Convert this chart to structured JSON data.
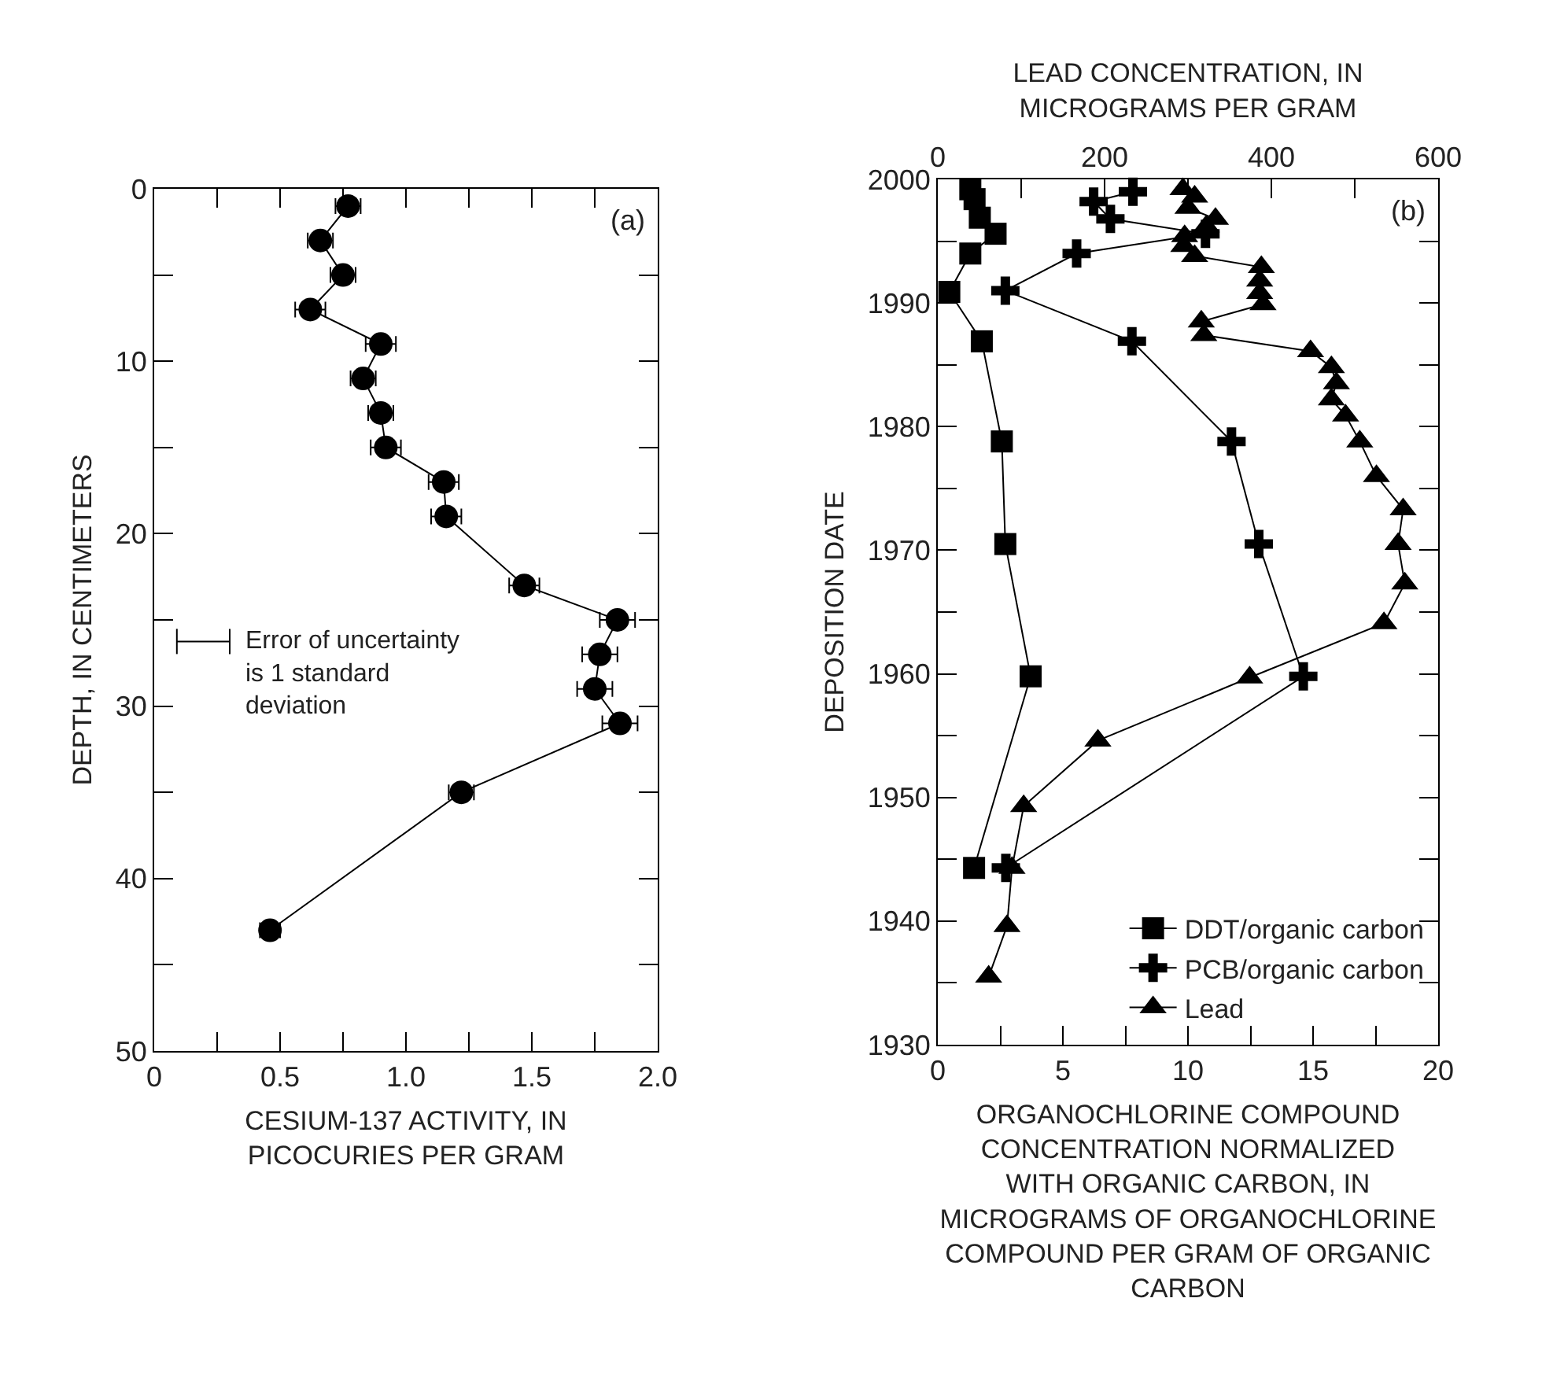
{
  "chart_data": [
    {
      "type": "line",
      "xlabel": "CESIUM-137 ACTIVITY, IN PICOCURIES PER GRAM",
      "ylabel": "DEPTH, IN CENTIMETERS",
      "xlim": [
        0,
        2.0
      ],
      "xticks": [
        0,
        {
          "value": 0.25,
          "label": null
        },
        0.5,
        {
          "value": 0.75,
          "label": null
        },
        {
          "value": 1,
          "label": "1.0"
        },
        {
          "value": 1.25,
          "label": null
        },
        1.5,
        {
          "value": 1.75,
          "label": null
        },
        {
          "value": 2,
          "label": "2.0"
        }
      ],
      "ylim": [
        50,
        0
      ],
      "yticks": [
        0,
        {
          "value": 5,
          "label": null
        },
        10,
        {
          "value": 15,
          "label": null
        },
        20,
        {
          "value": 25,
          "label": null
        },
        30,
        {
          "value": 35,
          "label": null
        },
        40,
        {
          "value": 45,
          "label": null
        },
        50
      ],
      "grid": false,
      "legend": false,
      "marker": "circle",
      "line_style": "solid",
      "annotations": [
        "(a)",
        "Error of uncertainty is 1 standard deviation"
      ],
      "series": [
        {
          "color": "#000000",
          "x": [
            0.77,
            0.66,
            0.75,
            0.62,
            0.9,
            0.83,
            0.9,
            0.92,
            1.15,
            1.16,
            1.47,
            1.84,
            1.77,
            1.75,
            1.85,
            1.22,
            0.46
          ],
          "values": [
            1,
            3,
            5,
            7,
            9,
            11,
            13,
            15,
            17,
            19,
            23,
            25,
            27,
            29,
            31,
            35,
            43
          ],
          "xerrors": [
            0.05,
            0.05,
            0.05,
            0.06,
            0.06,
            0.05,
            0.05,
            0.06,
            0.06,
            0.06,
            0.06,
            0.07,
            0.07,
            0.07,
            0.07,
            0.05,
            0.04
          ]
        }
      ]
    },
    {
      "type": "line",
      "xlabel": "ORGANOCHLORINE COMPOUND CONCENTRATION NORMALIZED WITH ORGANIC CARBON, IN MICROGRAMS OF ORGANOCHLORINE COMPOUND PER GRAM OF ORGANIC CARBON",
      "x2label": "LEAD CONCENTRATION, IN MICROGRAMS PER GRAM",
      "ylabel": "DEPOSITION DATE",
      "xlim": [
        0,
        20
      ],
      "xticks": [
        0,
        {
          "value": 2.5,
          "label": null
        },
        5,
        {
          "value": 7.5,
          "label": null
        },
        10,
        {
          "value": 12.5,
          "label": null
        },
        15,
        {
          "value": 17.5,
          "label": null
        },
        20
      ],
      "x2lim": [
        0,
        600
      ],
      "x2ticks": [
        0,
        {
          "value": 100,
          "label": null
        },
        200,
        {
          "value": 300,
          "label": null
        },
        400,
        {
          "value": 500,
          "label": null
        },
        600
      ],
      "ylim": [
        1930,
        2000
      ],
      "yticks": [
        1930,
        {
          "value": 1935,
          "label": null
        },
        1940,
        {
          "value": 1945,
          "label": null
        },
        1950,
        {
          "value": 1955,
          "label": null
        },
        1960,
        {
          "value": 1965,
          "label": null
        },
        1970,
        {
          "value": 1975,
          "label": null
        },
        1980,
        {
          "value": 1985,
          "label": null
        },
        1990,
        {
          "value": 1995,
          "label": null
        },
        2000
      ],
      "grid": false,
      "legend": "bottom right",
      "line_style": "solid",
      "annotations": [
        "(b)"
      ],
      "series": [
        {
          "name": "DDT/organic carbon",
          "color": "#000000",
          "marker": "square",
          "x": [
            1.3,
            1.47,
            1.68,
            2.31,
            1.3,
            0.46,
            1.76,
            2.56,
            2.7,
            3.71,
            1.45
          ],
          "values": [
            1999.2,
            1998.4,
            1996.9,
            1995.6,
            1994.0,
            1990.9,
            1986.9,
            1978.8,
            1970.5,
            1959.8,
            1944.3
          ]
        },
        {
          "name": "PCB/organic carbon",
          "color": "#000000",
          "marker": "cross",
          "x": [
            7.8,
            6.23,
            6.9,
            10.7,
            5.55,
            2.7,
            7.76,
            11.74,
            12.83,
            14.61,
            2.72
          ],
          "values": [
            1999.0,
            1998.2,
            1996.8,
            1995.6,
            1994.0,
            1991.0,
            1986.9,
            1978.8,
            1970.5,
            1959.8,
            1944.3
          ]
        },
        {
          "name": "Lead",
          "color": "#000000",
          "marker": "triangle",
          "axis": "x2",
          "x": [
            294,
            308,
            300,
            333,
            322,
            296,
            295,
            308,
            388,
            386,
            386,
            390,
            316,
            319,
            447,
            472,
            478,
            472,
            489,
            506,
            526,
            558,
            552,
            560,
            535,
            374,
            192,
            103,
            89,
            83,
            61
          ],
          "values": [
            1999.2,
            1998.6,
            1997.7,
            1996.8,
            1996.2,
            1995.4,
            1994.6,
            1993.8,
            1992.9,
            1991.8,
            1990.8,
            1989.9,
            1988.5,
            1987.4,
            1986.1,
            1984.8,
            1983.5,
            1982.2,
            1980.9,
            1978.8,
            1976.0,
            1973.3,
            1970.5,
            1967.3,
            1964.1,
            1959.7,
            1954.6,
            1949.3,
            1944.3,
            1939.6,
            1935.5
          ]
        }
      ]
    }
  ]
}
